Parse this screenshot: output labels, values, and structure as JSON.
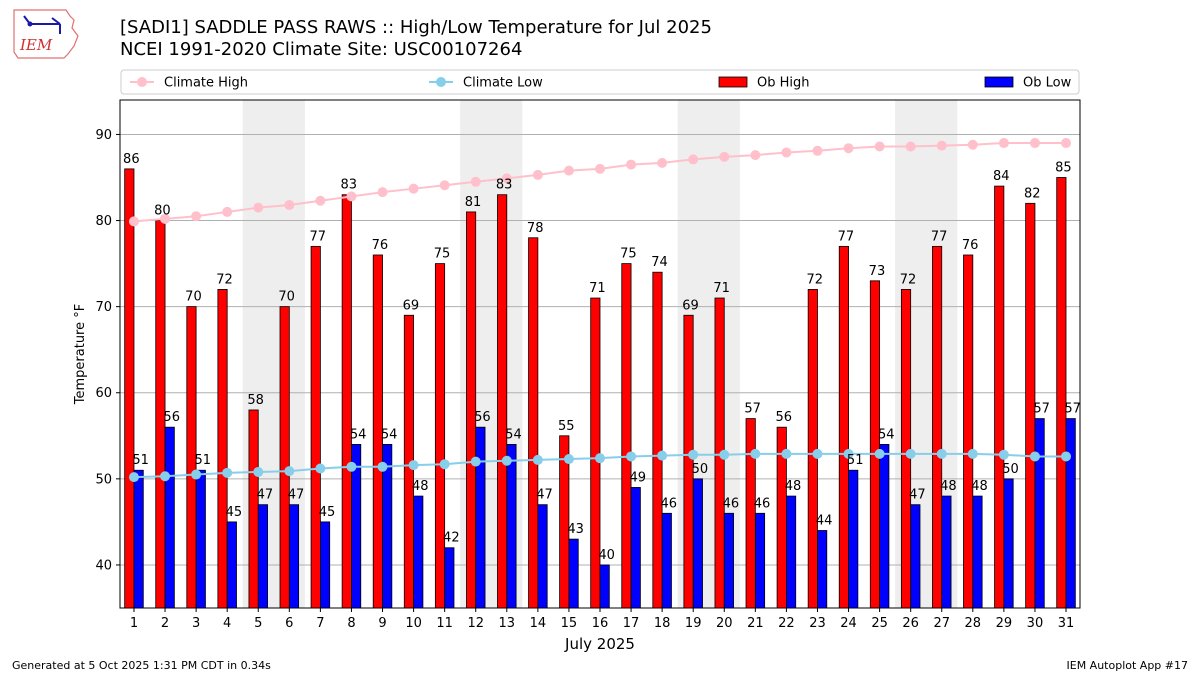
{
  "header": {
    "title_line1": "[SADI1] SADDLE PASS RAWS :: High/Low Temperature for Jul 2025",
    "title_line2": "NCEI 1991-2020 Climate Site: USC00107264",
    "logo_text": "IEM"
  },
  "footer": {
    "generated": "Generated at 5 Oct 2025 1:31 PM CDT in 0.34s",
    "app": "IEM Autoplot App #17"
  },
  "chart_data": {
    "type": "bar",
    "title": "[SADI1] SADDLE PASS RAWS :: High/Low Temperature for Jul 2025",
    "subtitle": "NCEI 1991-2020 Climate Site: USC00107264",
    "xlabel": "July 2025",
    "ylabel": "Temperature °F",
    "ylim": [
      35,
      94
    ],
    "yticks": [
      40,
      50,
      60,
      70,
      80,
      90
    ],
    "grid": "y",
    "legend_position": "top",
    "weekend_shading_days": [
      5,
      6,
      12,
      13,
      19,
      20,
      26,
      27
    ],
    "categories": [
      "1",
      "2",
      "3",
      "4",
      "5",
      "6",
      "7",
      "8",
      "9",
      "10",
      "11",
      "12",
      "13",
      "14",
      "15",
      "16",
      "17",
      "18",
      "19",
      "20",
      "21",
      "22",
      "23",
      "24",
      "25",
      "26",
      "27",
      "28",
      "29",
      "30",
      "31"
    ],
    "series": [
      {
        "name": "Climate High",
        "kind": "line",
        "color": "#FFC0CB",
        "values": [
          79.9,
          80.2,
          80.5,
          81.0,
          81.5,
          81.8,
          82.3,
          82.8,
          83.3,
          83.7,
          84.1,
          84.5,
          84.9,
          85.3,
          85.8,
          86.0,
          86.5,
          86.7,
          87.1,
          87.4,
          87.6,
          87.9,
          88.1,
          88.4,
          88.6,
          88.6,
          88.7,
          88.8,
          89.0,
          89.0,
          89.0
        ]
      },
      {
        "name": "Climate Low",
        "kind": "line",
        "color": "#87CEEB",
        "values": [
          50.2,
          50.3,
          50.5,
          50.7,
          50.8,
          50.9,
          51.2,
          51.4,
          51.4,
          51.6,
          51.7,
          52.0,
          52.1,
          52.2,
          52.3,
          52.4,
          52.6,
          52.7,
          52.8,
          52.8,
          52.9,
          52.9,
          52.9,
          52.9,
          52.9,
          52.9,
          52.9,
          52.9,
          52.8,
          52.6,
          52.6
        ]
      },
      {
        "name": "Ob High",
        "kind": "bar",
        "color": "#FF0000",
        "values": [
          86,
          80,
          70,
          72,
          58,
          70,
          77,
          83,
          76,
          69,
          75,
          81,
          83,
          78,
          55,
          71,
          75,
          74,
          69,
          71,
          57,
          56,
          72,
          77,
          73,
          72,
          77,
          76,
          84,
          82,
          85
        ]
      },
      {
        "name": "Ob Low",
        "kind": "bar",
        "color": "#0000FF",
        "values": [
          51,
          56,
          51,
          45,
          47,
          47,
          45,
          54,
          54,
          48,
          42,
          56,
          54,
          47,
          43,
          40,
          49,
          46,
          50,
          46,
          46,
          48,
          44,
          51,
          54,
          47,
          48,
          48,
          50,
          57,
          57
        ]
      }
    ]
  }
}
